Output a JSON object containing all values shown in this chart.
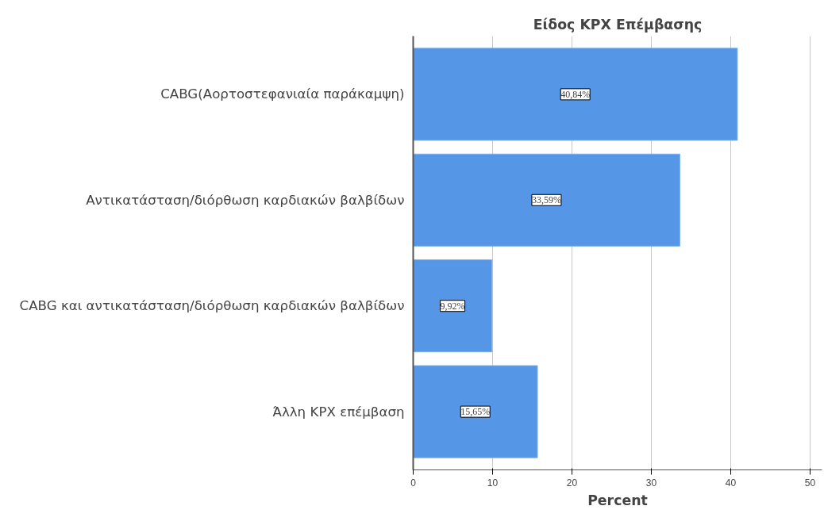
{
  "chart_data": {
    "type": "bar",
    "orientation": "horizontal",
    "title": "Είδος ΚΡΧ Επέμβασης",
    "xlabel": "Percent",
    "categories": [
      "CABG(Αορτοστεφανιαία παράκαμψη)",
      "Αντικατάσταση/διόρθωση καρδιακών βαλβίδων",
      "CABG και αντικατάσταση/διόρθωση καρδιακών βαλβίδων",
      "Άλλη ΚΡΧ επέμβαση"
    ],
    "values": [
      40.84,
      33.59,
      9.92,
      15.65
    ],
    "value_labels": [
      "40,84%",
      "33,59%",
      "9,92%",
      "15,65%"
    ],
    "color": "#5596e6",
    "xlim": [
      0,
      51.5
    ],
    "xticks": [
      0,
      10,
      20,
      30,
      40,
      50
    ],
    "grid": "x"
  }
}
